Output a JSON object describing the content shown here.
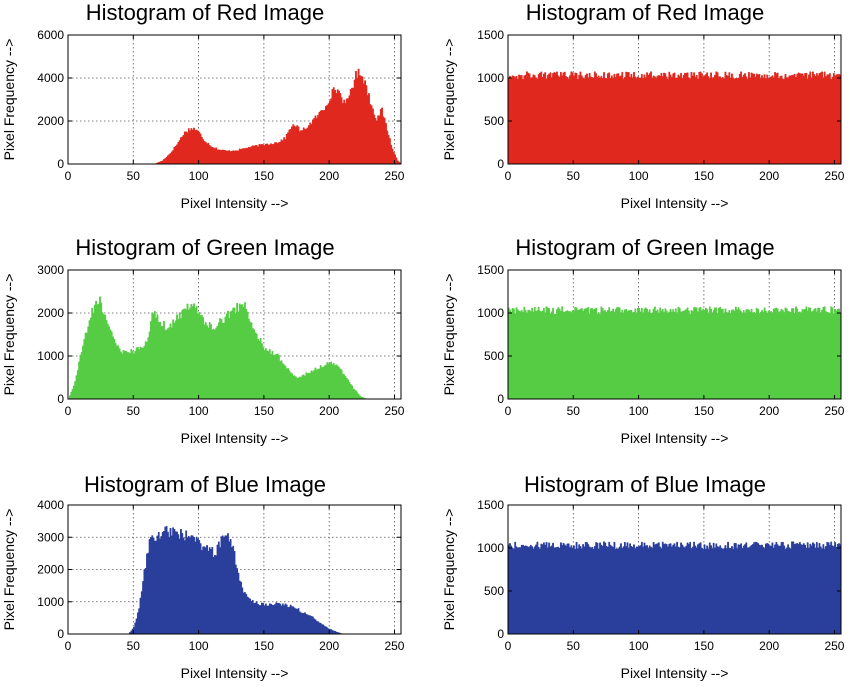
{
  "chart_data": [
    {
      "id": "red-original",
      "type": "area",
      "title": "Histogram of Red Image",
      "xlabel": "Pixel Intensity -->",
      "ylabel": "Pixel Frequency -->",
      "xlim": [
        0,
        255
      ],
      "ylim": [
        0,
        6000
      ],
      "xticks": [
        0,
        50,
        100,
        150,
        200,
        250
      ],
      "yticks": [
        0,
        2000,
        4000,
        6000
      ],
      "grid": true,
      "color": "#e0281e",
      "x": [
        0,
        66,
        72,
        78,
        84,
        88,
        92,
        96,
        100,
        104,
        110,
        116,
        122,
        130,
        140,
        150,
        160,
        166,
        170,
        174,
        178,
        184,
        190,
        196,
        200,
        204,
        208,
        212,
        216,
        220,
        224,
        228,
        232,
        236,
        240,
        244,
        248,
        252,
        255
      ],
      "y": [
        0,
        0,
        150,
        500,
        1000,
        1400,
        1600,
        1650,
        1450,
        1100,
        800,
        650,
        600,
        650,
        800,
        900,
        1000,
        1200,
        1700,
        1800,
        1500,
        1800,
        2200,
        2600,
        3100,
        3500,
        3300,
        2700,
        3400,
        4100,
        4300,
        3600,
        2700,
        2100,
        2500,
        1600,
        700,
        150,
        0
      ]
    },
    {
      "id": "red-equalized",
      "type": "area",
      "title": "Histogram of Red Image",
      "xlabel": "Pixel Intensity -->",
      "ylabel": "Pixel Frequency -->",
      "xlim": [
        0,
        255
      ],
      "ylim": [
        0,
        1500
      ],
      "xticks": [
        0,
        50,
        100,
        150,
        200,
        250
      ],
      "yticks": [
        0,
        500,
        1000,
        1500
      ],
      "grid": true,
      "color": "#e0281e",
      "x": [
        0,
        255
      ],
      "y": [
        1030,
        1030
      ],
      "noise": 45
    },
    {
      "id": "green-original",
      "type": "area",
      "title": "Histogram of Green Image",
      "xlabel": "Pixel Intensity -->",
      "ylabel": "Pixel Frequency -->",
      "xlim": [
        0,
        255
      ],
      "ylim": [
        0,
        3000
      ],
      "xticks": [
        0,
        50,
        100,
        150,
        200,
        250
      ],
      "yticks": [
        0,
        1000,
        2000,
        3000
      ],
      "grid": true,
      "color": "#55cc44",
      "x": [
        0,
        4,
        10,
        16,
        20,
        24,
        28,
        34,
        40,
        50,
        60,
        64,
        68,
        76,
        84,
        90,
        96,
        100,
        106,
        112,
        120,
        128,
        134,
        138,
        144,
        150,
        160,
        170,
        176,
        180,
        190,
        196,
        200,
        206,
        212,
        218,
        224,
        228,
        255
      ],
      "y": [
        0,
        300,
        1100,
        1900,
        2200,
        2300,
        1900,
        1400,
        1100,
        1100,
        1300,
        2000,
        1900,
        1600,
        1900,
        2100,
        2300,
        2000,
        1700,
        1700,
        1900,
        2100,
        2200,
        1900,
        1500,
        1200,
        1000,
        600,
        500,
        550,
        700,
        800,
        850,
        750,
        550,
        250,
        50,
        0,
        0
      ]
    },
    {
      "id": "green-equalized",
      "type": "area",
      "title": "Histogram of Green Image",
      "xlabel": "Pixel Intensity -->",
      "ylabel": "Pixel Frequency -->",
      "xlim": [
        0,
        255
      ],
      "ylim": [
        0,
        1500
      ],
      "xticks": [
        0,
        50,
        100,
        150,
        200,
        250
      ],
      "yticks": [
        0,
        500,
        1000,
        1500
      ],
      "grid": true,
      "color": "#55cc44",
      "x": [
        0,
        255
      ],
      "y": [
        1030,
        1030
      ],
      "noise": 45
    },
    {
      "id": "blue-original",
      "type": "area",
      "title": "Histogram of Blue Image",
      "xlabel": "Pixel Intensity -->",
      "ylabel": "Pixel Frequency -->",
      "xlim": [
        0,
        255
      ],
      "ylim": [
        0,
        4000
      ],
      "xticks": [
        0,
        50,
        100,
        150,
        200,
        250
      ],
      "yticks": [
        0,
        1000,
        2000,
        3000,
        4000
      ],
      "grid": true,
      "color": "#2a3e9c",
      "x": [
        0,
        46,
        50,
        54,
        58,
        62,
        66,
        70,
        74,
        80,
        90,
        96,
        100,
        106,
        112,
        118,
        122,
        126,
        130,
        134,
        140,
        150,
        160,
        170,
        176,
        180,
        186,
        192,
        200,
        206,
        210,
        255
      ],
      "y": [
        0,
        0,
        200,
        800,
        1900,
        2800,
        3000,
        3100,
        3200,
        3150,
        3050,
        2900,
        2800,
        2650,
        2500,
        2950,
        3000,
        2600,
        1900,
        1300,
        1000,
        900,
        950,
        850,
        750,
        650,
        550,
        350,
        150,
        50,
        0,
        0
      ]
    },
    {
      "id": "blue-equalized",
      "type": "area",
      "title": "Histogram of Blue Image",
      "xlabel": "Pixel Intensity -->",
      "ylabel": "Pixel Frequency -->",
      "xlim": [
        0,
        255
      ],
      "ylim": [
        0,
        1500
      ],
      "xticks": [
        0,
        50,
        100,
        150,
        200,
        250
      ],
      "yticks": [
        0,
        500,
        1000,
        1500
      ],
      "grid": true,
      "color": "#2a3e9c",
      "x": [
        0,
        255
      ],
      "y": [
        1030,
        1030
      ],
      "noise": 45
    }
  ]
}
